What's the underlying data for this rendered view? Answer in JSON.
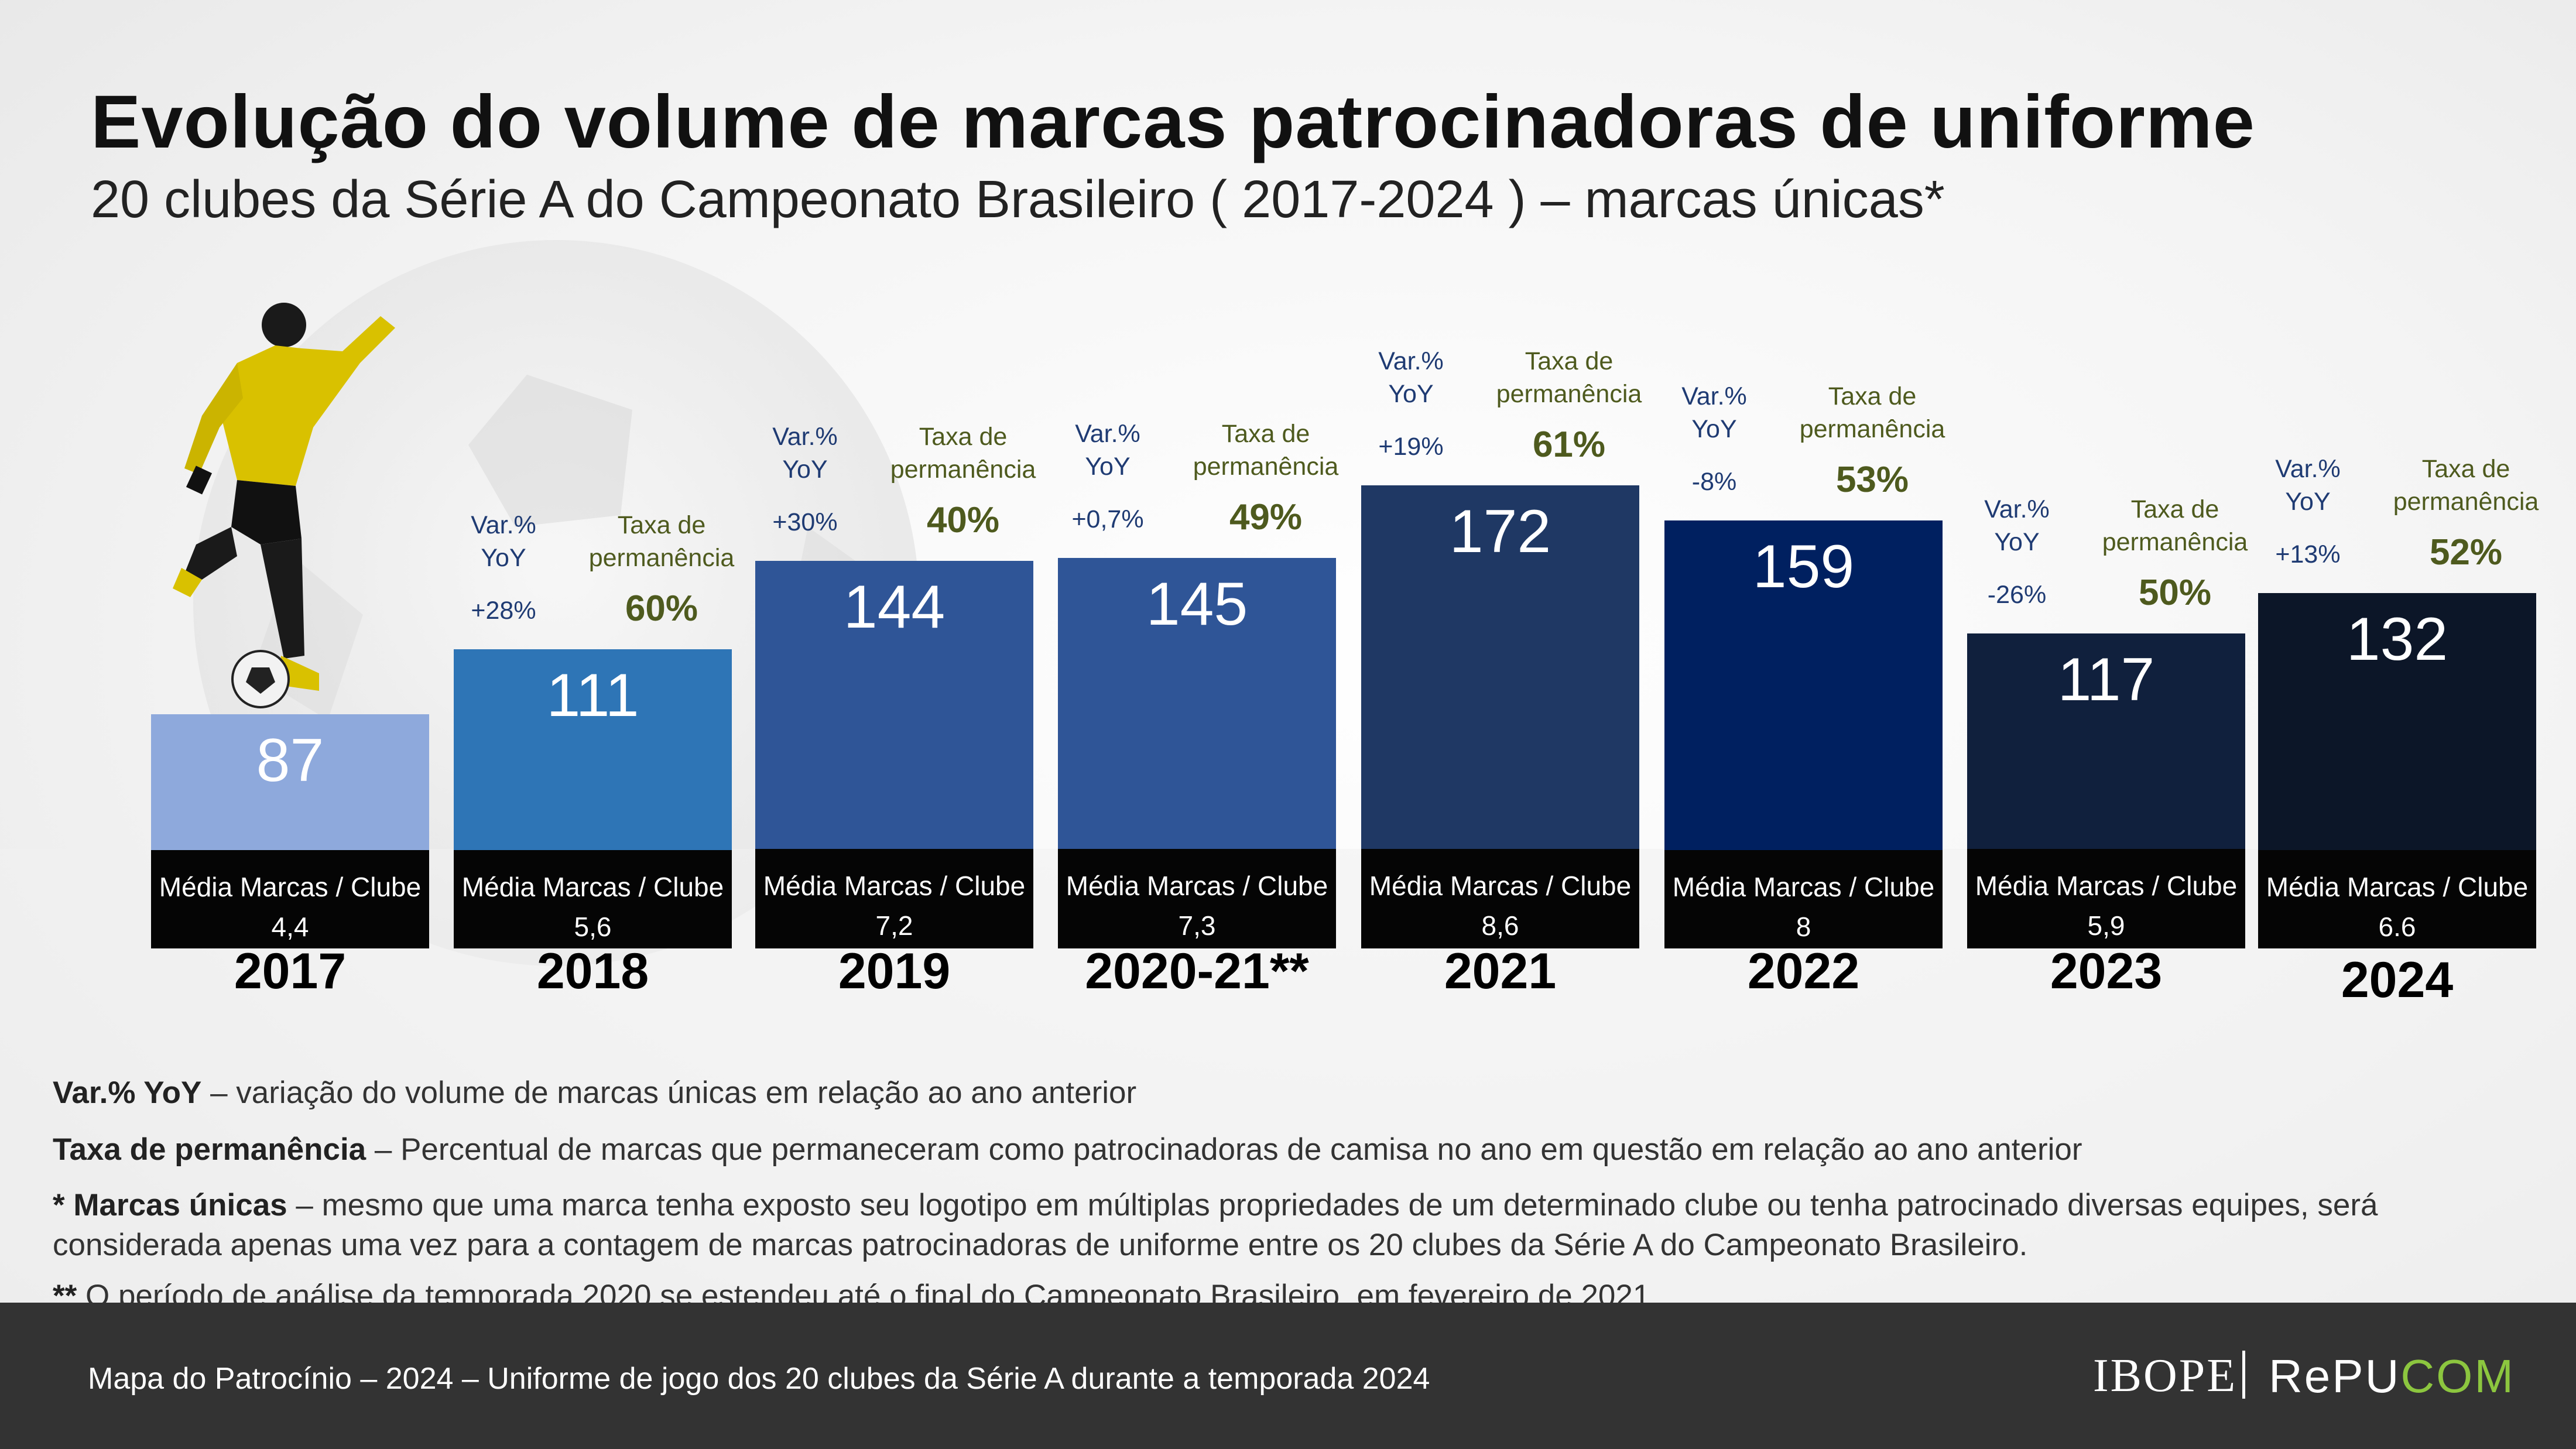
{
  "title": "Evolução do volume de marcas patrocinadoras de uniforme",
  "subtitle": "20 clubes da Série A do Campeonato Brasileiro ( 2017-2024 ) – marcas únicas*",
  "chart_data": {
    "type": "bar",
    "categories": [
      "2017",
      "2018",
      "2019",
      "2020-21**",
      "2021",
      "2022",
      "2023",
      "2024"
    ],
    "values": [
      87,
      111,
      144,
      145,
      172,
      159,
      117,
      132
    ],
    "bar_colors": [
      "#8ea9dc",
      "#2e75b6",
      "#2f5597",
      "#2f5597",
      "#1f3864",
      "#002060",
      "#10203d",
      "#0c1628"
    ],
    "avg_label": "Média Marcas / Clube",
    "avg_values": [
      "4,4",
      "5,6",
      "7,2",
      "7,3",
      "8,6",
      "8",
      "5,9",
      "6.6"
    ],
    "var_label": "Var.% YoY",
    "var_values": [
      null,
      "+28%",
      "+30%",
      "+0,7%",
      "+19%",
      "-8%",
      "-26%",
      "+13%"
    ],
    "perm_label": "Taxa de permanência",
    "perm_values": [
      null,
      "60%",
      "40%",
      "49%",
      "61%",
      "53%",
      "50%",
      "52%"
    ]
  },
  "notes": [
    {
      "bold": "Var.% YoY",
      "text": " – variação do volume de marcas únicas em relação ao ano anterior"
    },
    {
      "bold": "Taxa de permanência",
      "text": " – Percentual de marcas que permaneceram como patrocinadoras de camisa no ano em questão em relação ao ano anterior"
    },
    {
      "bold": "* Marcas únicas",
      "text": " – mesmo que uma marca tenha exposto seu logotipo em múltiplas propriedades de um determinado clube ou tenha patrocinado diversas equipes, será considerada apenas uma vez para a contagem de marcas patrocinadoras de uniforme entre os 20 clubes da Série A do Campeonato Brasileiro."
    },
    {
      "bold": "**",
      "text": " O período de análise da temporada 2020 se estendeu até o final do Campeonato Brasileiro, em fevereiro de 2021."
    }
  ],
  "footer": {
    "text": "Mapa do Patrocínio – 2024 – Uniforme de jogo dos 20 clubes da Série A durante a temporada 2024",
    "logo_ibope": "IBOPE",
    "logo_repucom_a": "RePU",
    "logo_repucom_b": "COM"
  }
}
